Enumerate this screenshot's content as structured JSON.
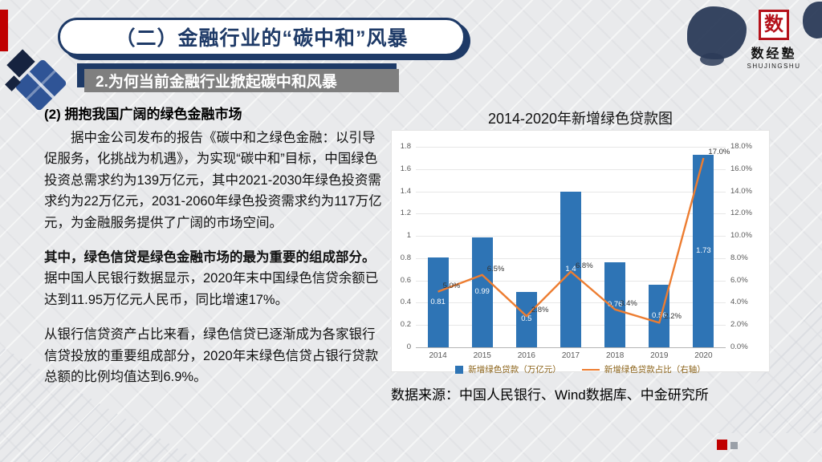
{
  "header": {
    "title": "（二）金融行业的“碳中和”风暴",
    "subtitle": "2.为何当前金融行业掀起碳中和风暴"
  },
  "logo": {
    "seal_char": "数",
    "name": "数经塾",
    "romanized": "SHUJINGSHU"
  },
  "content": {
    "heading": "(2) 拥抱我国广阔的绿色金融市场",
    "para1": "据中金公司发布的报告《碳中和之绿色金融：以引导促服务，化挑战为机遇》，为实现“碳中和”目标，中国绿色投资总需求约为139万亿元，其中2021-2030年绿色投资需求约为22万亿元，2031-2060年绿色投资需求约为117万亿元，为金融服务提供了广阔的市场空间。",
    "para2_bold": "其中，绿色信贷是绿色金融市场的最为重要的组成部分。",
    "para2_rest": "据中国人民银行数据显示，2020年末中国绿色信贷余额已达到11.95万亿元人民币，同比增速17%。",
    "para3": "从银行信贷资产占比来看，绿色信贷已逐渐成为各家银行信贷投放的重要组成部分，2020年末绿色信贷占银行贷款总额的比例均值达到6.9%。",
    "source": "数据来源：中国人民银行、Wind数据库、中金研究所"
  },
  "chart_data": {
    "type": "bar",
    "title": "2014-2020年新增绿色贷款图",
    "categories": [
      "2014",
      "2015",
      "2016",
      "2017",
      "2018",
      "2019",
      "2020"
    ],
    "series": [
      {
        "name": "新增绿色贷款（万亿元）",
        "type": "bar",
        "axis": "left",
        "color": "#2e74b5",
        "values": [
          0.81,
          0.99,
          0.5,
          1.4,
          0.76,
          0.56,
          1.73
        ]
      },
      {
        "name": "新增绿色贷款占比（右轴）",
        "type": "line",
        "axis": "right",
        "color": "#ed7d31",
        "values": [
          5.0,
          6.5,
          2.8,
          6.8,
          3.4,
          2.2,
          17.0
        ]
      }
    ],
    "bar_labels": [
      "0.81",
      "0.99",
      "0.5",
      "1.4",
      "0.76",
      "0.56",
      "1.73"
    ],
    "line_labels": [
      "5.0%",
      "6.5%",
      "2.8%",
      "6.8%",
      "3.4%",
      "2.2%",
      "17.0%"
    ],
    "left_axis": {
      "min": 0,
      "max": 1.8,
      "step": 0.2
    },
    "right_axis": {
      "min": 0,
      "max": 18,
      "step": 2,
      "suffix": "%"
    },
    "legend_position": "bottom",
    "grid": true
  },
  "colors": {
    "accent_red": "#c00000",
    "navy": "#1e3a67",
    "banner_gray": "#7f7f7f",
    "bar_blue": "#2e74b5",
    "line_orange": "#ed7d31"
  }
}
